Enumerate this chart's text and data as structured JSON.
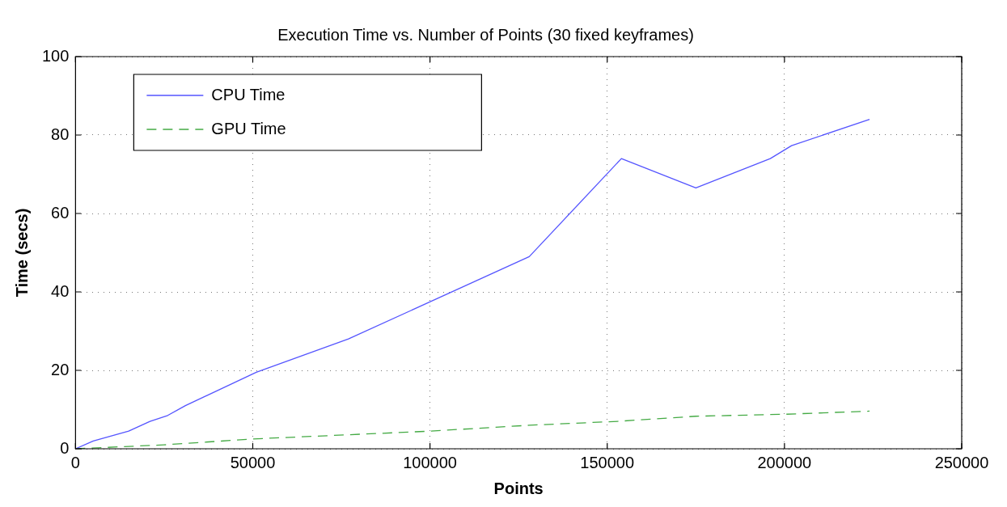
{
  "chart_data": {
    "type": "line",
    "title": "Execution Time vs. Number of Points (30 fixed keyframes)",
    "xlabel": "Points",
    "ylabel": "Time (secs)",
    "xlim": [
      0,
      250000
    ],
    "xticks": [
      0,
      50000,
      100000,
      150000,
      200000,
      250000
    ],
    "ylim": [
      0,
      100
    ],
    "yticks": [
      0,
      20,
      40,
      60,
      80,
      100
    ],
    "grid": true,
    "legend": "top left",
    "marker": "none",
    "series": [
      {
        "name": "CPU Time",
        "color": "#5555ff",
        "line_style": "solid",
        "x": [
          0,
          5000,
          15000,
          21000,
          26000,
          31000,
          51000,
          77000,
          128000,
          154000,
          175000,
          196000,
          202000,
          224000
        ],
        "values": [
          0,
          2,
          4.5,
          7,
          8.5,
          11,
          19.5,
          28,
          49,
          74,
          66.5,
          74,
          77.3,
          84
        ]
      },
      {
        "name": "GPU Time",
        "color": "#44aa44",
        "line_style": "dashed",
        "x": [
          0,
          25000,
          50000,
          100000,
          128000,
          153000,
          175000,
          200000,
          224000
        ],
        "values": [
          0,
          1,
          2.5,
          4.5,
          6,
          7,
          8.3,
          8.8,
          9.6
        ]
      }
    ]
  }
}
